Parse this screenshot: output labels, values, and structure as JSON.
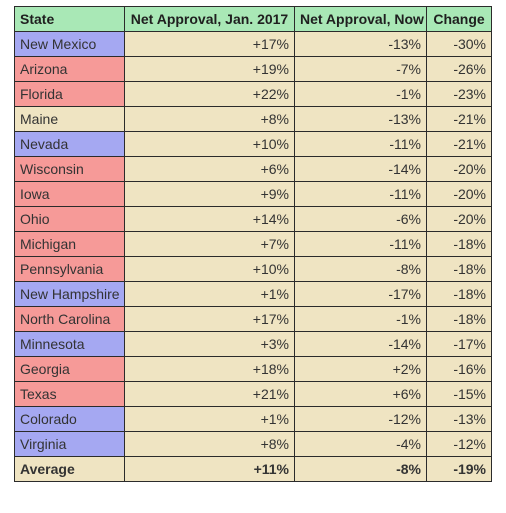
{
  "table": {
    "headers": [
      "State",
      "Net Approval, Jan. 2017",
      "Net Approval, Now",
      "Change"
    ],
    "rows": [
      {
        "state": "New Mexico",
        "party": "dem",
        "jan": "+17%",
        "now": "-13%",
        "change": "-30%"
      },
      {
        "state": "Arizona",
        "party": "rep",
        "jan": "+19%",
        "now": "-7%",
        "change": "-26%"
      },
      {
        "state": "Florida",
        "party": "rep",
        "jan": "+22%",
        "now": "-1%",
        "change": "-23%"
      },
      {
        "state": "Maine",
        "party": "neu",
        "jan": "+8%",
        "now": "-13%",
        "change": "-21%"
      },
      {
        "state": "Nevada",
        "party": "dem",
        "jan": "+10%",
        "now": "-11%",
        "change": "-21%"
      },
      {
        "state": "Wisconsin",
        "party": "rep",
        "jan": "+6%",
        "now": "-14%",
        "change": "-20%"
      },
      {
        "state": "Iowa",
        "party": "rep",
        "jan": "+9%",
        "now": "-11%",
        "change": "-20%"
      },
      {
        "state": "Ohio",
        "party": "rep",
        "jan": "+14%",
        "now": "-6%",
        "change": "-20%"
      },
      {
        "state": "Michigan",
        "party": "rep",
        "jan": "+7%",
        "now": "-11%",
        "change": "-18%"
      },
      {
        "state": "Pennsylvania",
        "party": "rep",
        "jan": "+10%",
        "now": "-8%",
        "change": "-18%"
      },
      {
        "state": "New Hampshire",
        "party": "dem",
        "jan": "+1%",
        "now": "-17%",
        "change": "-18%"
      },
      {
        "state": "North Carolina",
        "party": "rep",
        "jan": "+17%",
        "now": "-1%",
        "change": "-18%"
      },
      {
        "state": "Minnesota",
        "party": "dem",
        "jan": "+3%",
        "now": "-14%",
        "change": "-17%"
      },
      {
        "state": "Georgia",
        "party": "rep",
        "jan": "+18%",
        "now": "+2%",
        "change": "-16%"
      },
      {
        "state": "Texas",
        "party": "rep",
        "jan": "+21%",
        "now": "+6%",
        "change": "-15%"
      },
      {
        "state": "Colorado",
        "party": "dem",
        "jan": "+1%",
        "now": "-12%",
        "change": "-13%"
      },
      {
        "state": "Virginia",
        "party": "dem",
        "jan": "+8%",
        "now": "-4%",
        "change": "-12%"
      }
    ],
    "average": {
      "label": "Average",
      "jan": "+11%",
      "now": "-8%",
      "change": "-19%"
    }
  },
  "colors": {
    "header_bg": "#a9e8b6",
    "dem_bg": "#a5a8f2",
    "rep_bg": "#f69a98",
    "cell_bg": "#efe4c2",
    "border": "#2b2b2b"
  }
}
